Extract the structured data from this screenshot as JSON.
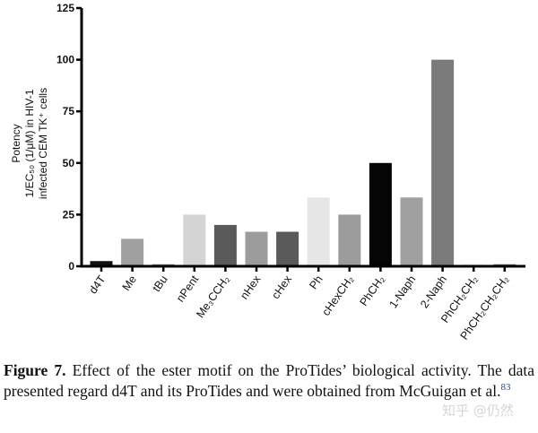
{
  "chart_data": {
    "type": "bar",
    "title": "",
    "xlabel": "",
    "ylabel": "Potency 1/EC50 (1/μM) in HIV-1 infected CEM TK+ cells",
    "ylabel_lines": [
      "Potency",
      "1/EC₅₀ (1/μM) in HIV-1",
      "infected CEM TK⁺ cells"
    ],
    "ylim": [
      0,
      125
    ],
    "yticks": [
      0,
      25,
      50,
      75,
      100,
      125
    ],
    "grid": false,
    "legend": "none",
    "categories": [
      "d4T",
      "Me",
      "tBu",
      "nPent",
      "Me₃CCH₂",
      "nHex",
      "cHex",
      "Ph",
      "cHexCH₂",
      "PhCH₂",
      "1-Naph",
      "2-Naph",
      "PhCH₂CH₂",
      "PhCH₂CH₂CH₂"
    ],
    "values": [
      2.5,
      13.3,
      1.0,
      25.0,
      20.0,
      16.7,
      16.7,
      33.3,
      25.0,
      50.0,
      33.3,
      100.0,
      0.7,
      1.0
    ],
    "colors": [
      "#111111",
      "#a0a0a0",
      "#888888",
      "#d4d4d4",
      "#5a5a5a",
      "#9c9c9c",
      "#5a5a5a",
      "#e6e6e6",
      "#9c9c9c",
      "#050505",
      "#a0a0a0",
      "#7a7a7a",
      "#bbbbbb",
      "#777777"
    ]
  },
  "caption": {
    "label": "Figure 7.",
    "text": " Effect of the ester motif on the ProTides’ biological activity. The data presented regard d4T and its ProTides and were obtained from McGuigan et al.",
    "ref": "83"
  },
  "watermark": "知乎 @仍然"
}
